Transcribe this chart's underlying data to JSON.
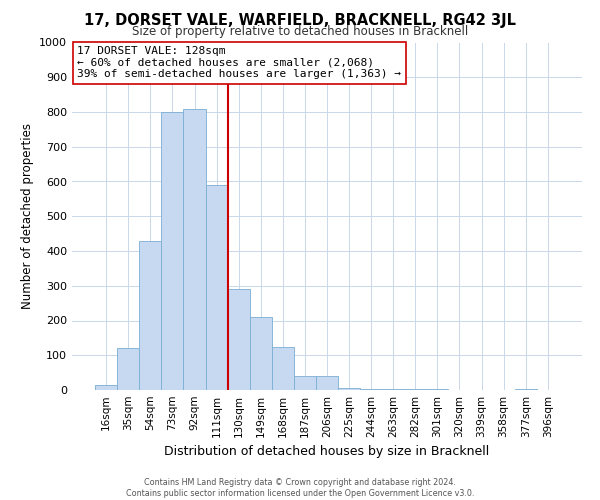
{
  "title": "17, DORSET VALE, WARFIELD, BRACKNELL, RG42 3JL",
  "subtitle": "Size of property relative to detached houses in Bracknell",
  "xlabel": "Distribution of detached houses by size in Bracknell",
  "ylabel": "Number of detached properties",
  "bar_labels": [
    "16sqm",
    "35sqm",
    "54sqm",
    "73sqm",
    "92sqm",
    "111sqm",
    "130sqm",
    "149sqm",
    "168sqm",
    "187sqm",
    "206sqm",
    "225sqm",
    "244sqm",
    "263sqm",
    "282sqm",
    "301sqm",
    "320sqm",
    "339sqm",
    "358sqm",
    "377sqm",
    "396sqm"
  ],
  "bar_values": [
    15,
    120,
    430,
    800,
    810,
    590,
    290,
    210,
    125,
    40,
    40,
    5,
    3,
    2,
    2,
    2,
    0,
    0,
    0,
    3,
    0
  ],
  "bar_color": "#c6d9f0",
  "bar_edge_color": "#7bafd4",
  "vline_color": "#cc0000",
  "vline_pos": 5.5,
  "annotation_title": "17 DORSET VALE: 128sqm",
  "annotation_line1": "← 60% of detached houses are smaller (2,068)",
  "annotation_line2": "39% of semi-detached houses are larger (1,363) →",
  "annotation_box_color": "#ffffff",
  "annotation_box_edge": "#cc0000",
  "ylim": [
    0,
    1000
  ],
  "yticks": [
    0,
    100,
    200,
    300,
    400,
    500,
    600,
    700,
    800,
    900,
    1000
  ],
  "footer1": "Contains HM Land Registry data © Crown copyright and database right 2024.",
  "footer2": "Contains public sector information licensed under the Open Government Licence v3.0.",
  "title_fontsize": 10.5,
  "subtitle_fontsize": 8.5,
  "ylabel_fontsize": 8.5,
  "xlabel_fontsize": 9,
  "tick_fontsize": 7.5,
  "ytick_fontsize": 8,
  "footer_fontsize": 5.8,
  "ann_fontsize": 8
}
